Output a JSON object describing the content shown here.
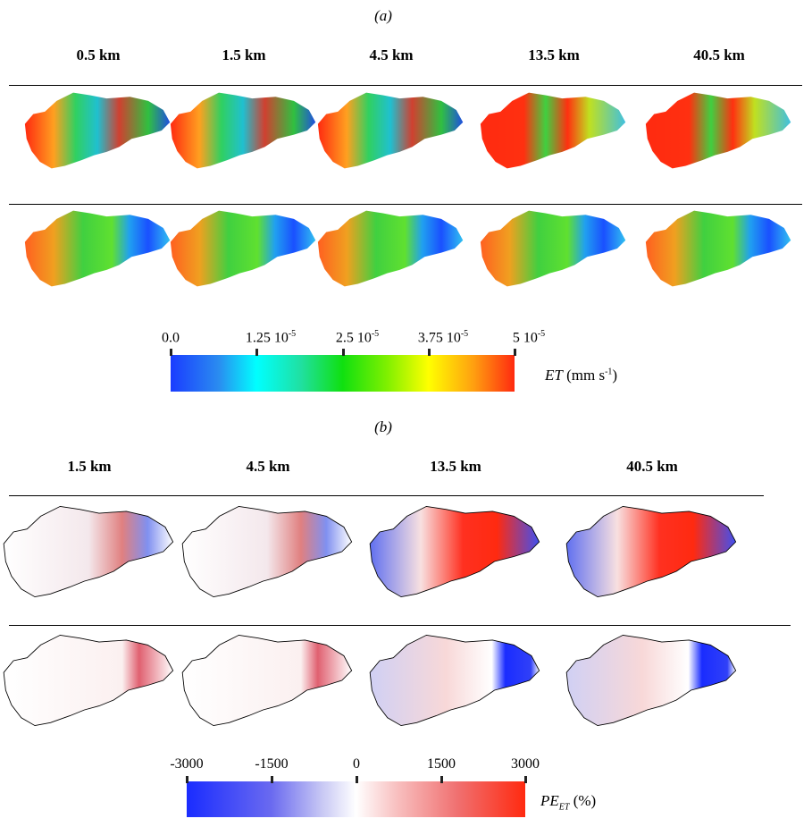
{
  "panel_a": {
    "label": "(a)",
    "columns": [
      "0.5 km",
      "1.5 km",
      "4.5 km",
      "13.5 km",
      "40.5 km"
    ],
    "colorbar": {
      "ticks": [
        {
          "value": "0.0",
          "exp": ""
        },
        {
          "value": "1.25 10",
          "exp": "-5"
        },
        {
          "value": "2.5 10",
          "exp": "-5"
        },
        {
          "value": "3.75 10",
          "exp": "-5"
        },
        {
          "value": "5 10",
          "exp": "-5"
        }
      ],
      "var": "ET",
      "unit_pre": " (mm s",
      "unit_exp": "-1",
      "unit_post": ")",
      "colors": [
        "#1a3cff",
        "#00ffff",
        "#10e010",
        "#ffff00",
        "#ff2a10"
      ]
    }
  },
  "panel_b": {
    "label": "(b)",
    "columns": [
      "1.5 km",
      "4.5 km",
      "13.5 km",
      "40.5 km"
    ],
    "colorbar": {
      "ticks": [
        "-3000",
        "-1500",
        "0",
        "1500",
        "3000"
      ],
      "var": "PE",
      "var_sub": "ET",
      "unit": " (%)",
      "colors": [
        "#1a2cff",
        "#ffffff",
        "#ff2a10"
      ]
    }
  }
}
